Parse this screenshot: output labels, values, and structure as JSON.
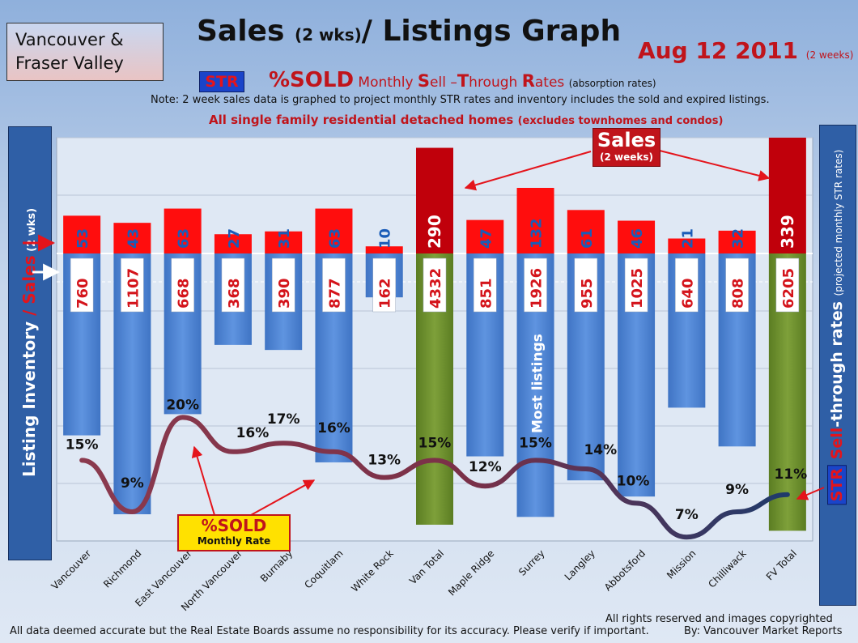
{
  "region": {
    "line1": "Vancouver &",
    "line2": "Fraser Valley"
  },
  "title": {
    "main": "Sales ",
    "small": "(2 wks)",
    "rest": "/ Listings Graph"
  },
  "date": {
    "main": "Aug 12 2011 ",
    "small": "(2 weeks)"
  },
  "str_badge": "STR",
  "pct_heading": {
    "big": "%SOLD",
    "a": " Monthly ",
    "s": "S",
    "b": "ell –",
    "t": "T",
    "c": "hrough ",
    "r": "R",
    "d": "ates ",
    "tiny": "(absorption rates)"
  },
  "note": "Note: 2 week sales data is graphed to project monthly STR rates and inventory includes the sold and expired listings.",
  "scope": {
    "main": "All single family residential detached homes ",
    "sub": "(excludes townhomes and condos)"
  },
  "left_axis": {
    "a": "Listing Inventory ",
    "b": "/ ",
    "c": "Sales",
    "d": " (2 wks)"
  },
  "right_axis": {
    "badge": "STR",
    "a": " ",
    "b": "Sell",
    "c": "-through rates ",
    "d": "(projected monthly STR rates)"
  },
  "sales_callout": {
    "title": "Sales",
    "sub": "(2 weeks)"
  },
  "sold_callout": {
    "title": "%SOLD",
    "sub": "Monthly Rate"
  },
  "most_listings_note": "Most listings",
  "footer": {
    "rights": "All rights reserved and  images copyrighted",
    "disclaimer": "All data deemed accurate but the Real Estate Boards assume no responsibility for its accuracy.  Please verify if important.",
    "credit": "By: Vancouver Market Reports"
  },
  "colors": {
    "sales": "#ff0d0d",
    "sales_total": "#c0000b",
    "listings": "#4f86d6",
    "listings_total": "#6b8e2c",
    "str_line": "#8b3a4e",
    "str_line_end": "#1f3a6b"
  },
  "chart_data": {
    "type": "bar",
    "categories": [
      "Vancouver",
      "Richmond",
      "East Vancouver",
      "North Vancouver",
      "Burnaby",
      "Coquitlam",
      "White Rock",
      "Van Total",
      "Maple Ridge",
      "Surrey",
      "Langley",
      "Abbotsford",
      "Mission",
      "Chilliwack",
      "FV Total"
    ],
    "series": [
      {
        "name": "Sales",
        "values": [
          53,
          43,
          63,
          27,
          31,
          63,
          10,
          290,
          47,
          132,
          61,
          46,
          21,
          32,
          339
        ],
        "labels": [
          "53",
          "43",
          "63",
          "27",
          "31",
          "63",
          "10",
          "290",
          "47",
          "132",
          "61",
          "46",
          "21",
          "32",
          "339"
        ]
      },
      {
        "name": "Listing Inventory",
        "values": [
          760,
          1107,
          668,
          368,
          390,
          877,
          162,
          4332,
          851,
          1926,
          955,
          1025,
          640,
          808,
          6205
        ],
        "labels": [
          "760",
          "1107",
          "668",
          "368",
          "390",
          "877",
          "162",
          "4332",
          "851",
          "1926",
          "955",
          "1025",
          "640",
          "808",
          "6205"
        ]
      },
      {
        "name": "%SOLD Monthly Rate",
        "values": [
          15,
          9,
          20,
          16,
          17,
          16,
          13,
          15,
          12,
          15,
          14,
          10,
          7,
          9,
          11
        ],
        "labels": [
          "15%",
          "9%",
          "20%",
          "16%",
          "17%",
          "16%",
          "13%",
          "15%",
          "12%",
          "15%",
          "14%",
          "10%",
          "7%",
          "9%",
          "11%"
        ]
      }
    ],
    "totals": [
      "Van Total",
      "FV Total"
    ],
    "grid": true
  }
}
